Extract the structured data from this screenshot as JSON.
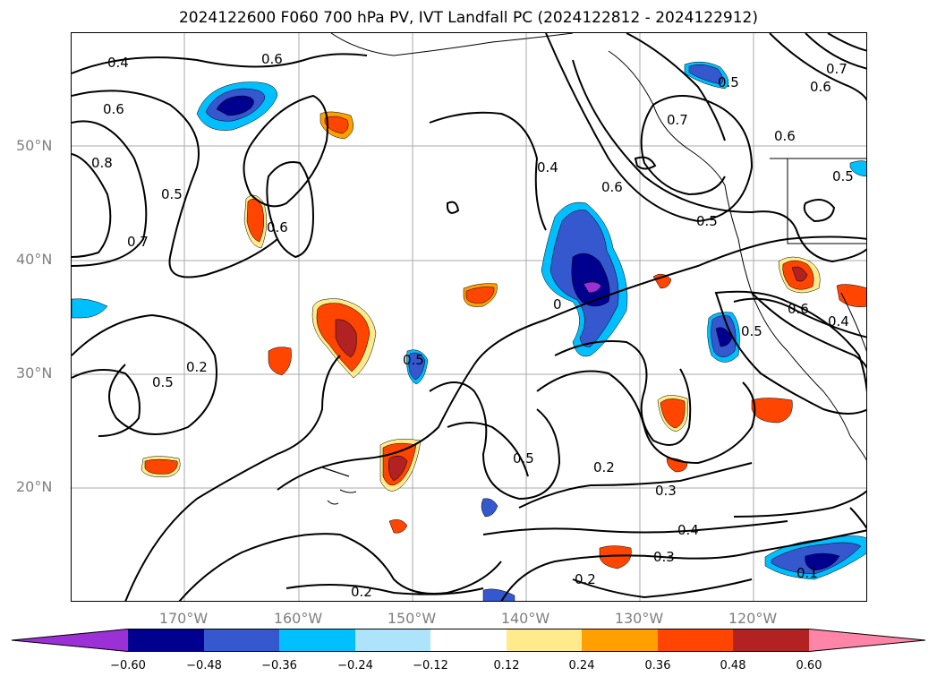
{
  "title": "2024122600 F060 700 hPa PV, IVT Landfall PC (2024122812 - 2024122912)",
  "lat_labels": [
    "50°N",
    "40°N",
    "30°N",
    "20°N"
  ],
  "lon_labels": [
    "170°W",
    "160°W",
    "150°W",
    "140°W",
    "130°W",
    "120°W"
  ],
  "colorbar": {
    "ticks": [
      "−0.60",
      "−0.48",
      "−0.36",
      "−0.24",
      "−0.12",
      "0.12",
      "0.24",
      "0.36",
      "0.48",
      "0.60"
    ],
    "colors": [
      "#9b30d6",
      "#00008f",
      "#3558cf",
      "#00bfff",
      "#aee4fb",
      "#ffffff",
      "#ffeb8c",
      "#ff9f00",
      "#ff4500",
      "#b22222",
      "#ff85a8"
    ]
  },
  "contour_labels": [
    {
      "text": "0.4",
      "id": "c1"
    },
    {
      "text": "0.6",
      "id": "c2"
    },
    {
      "text": "0.6",
      "id": "c3"
    },
    {
      "text": "0.8",
      "id": "c4"
    },
    {
      "text": "0.5",
      "id": "c5"
    },
    {
      "text": "0.7",
      "id": "c6"
    },
    {
      "text": "0.6",
      "id": "c7"
    },
    {
      "text": "0.4",
      "id": "c8"
    },
    {
      "text": "0.6",
      "id": "c9"
    },
    {
      "text": "0.7",
      "id": "c10"
    },
    {
      "text": "0.6",
      "id": "c11"
    },
    {
      "text": "0.5",
      "id": "c12"
    },
    {
      "text": "0.5",
      "id": "c13"
    },
    {
      "text": "0.7",
      "id": "c14"
    },
    {
      "text": "0.6",
      "id": "c15"
    },
    {
      "text": "0.5",
      "id": "c16"
    },
    {
      "text": "0.6",
      "id": "c17"
    },
    {
      "text": "0.4",
      "id": "c18"
    },
    {
      "text": "0.5",
      "id": "c19"
    },
    {
      "text": "0.5",
      "id": "c20"
    },
    {
      "text": "0.2",
      "id": "c21"
    },
    {
      "text": "0.5",
      "id": "c22"
    },
    {
      "text": "0.5",
      "id": "c23"
    },
    {
      "text": "0.2",
      "id": "c24"
    },
    {
      "text": "0.3",
      "id": "c25"
    },
    {
      "text": "0.4",
      "id": "c26"
    },
    {
      "text": "0.3",
      "id": "c27"
    },
    {
      "text": "0.2",
      "id": "c28"
    },
    {
      "text": "0.2",
      "id": "c29"
    },
    {
      "text": "0.1",
      "id": "c30"
    },
    {
      "text": "0",
      "id": "c31"
    }
  ]
}
